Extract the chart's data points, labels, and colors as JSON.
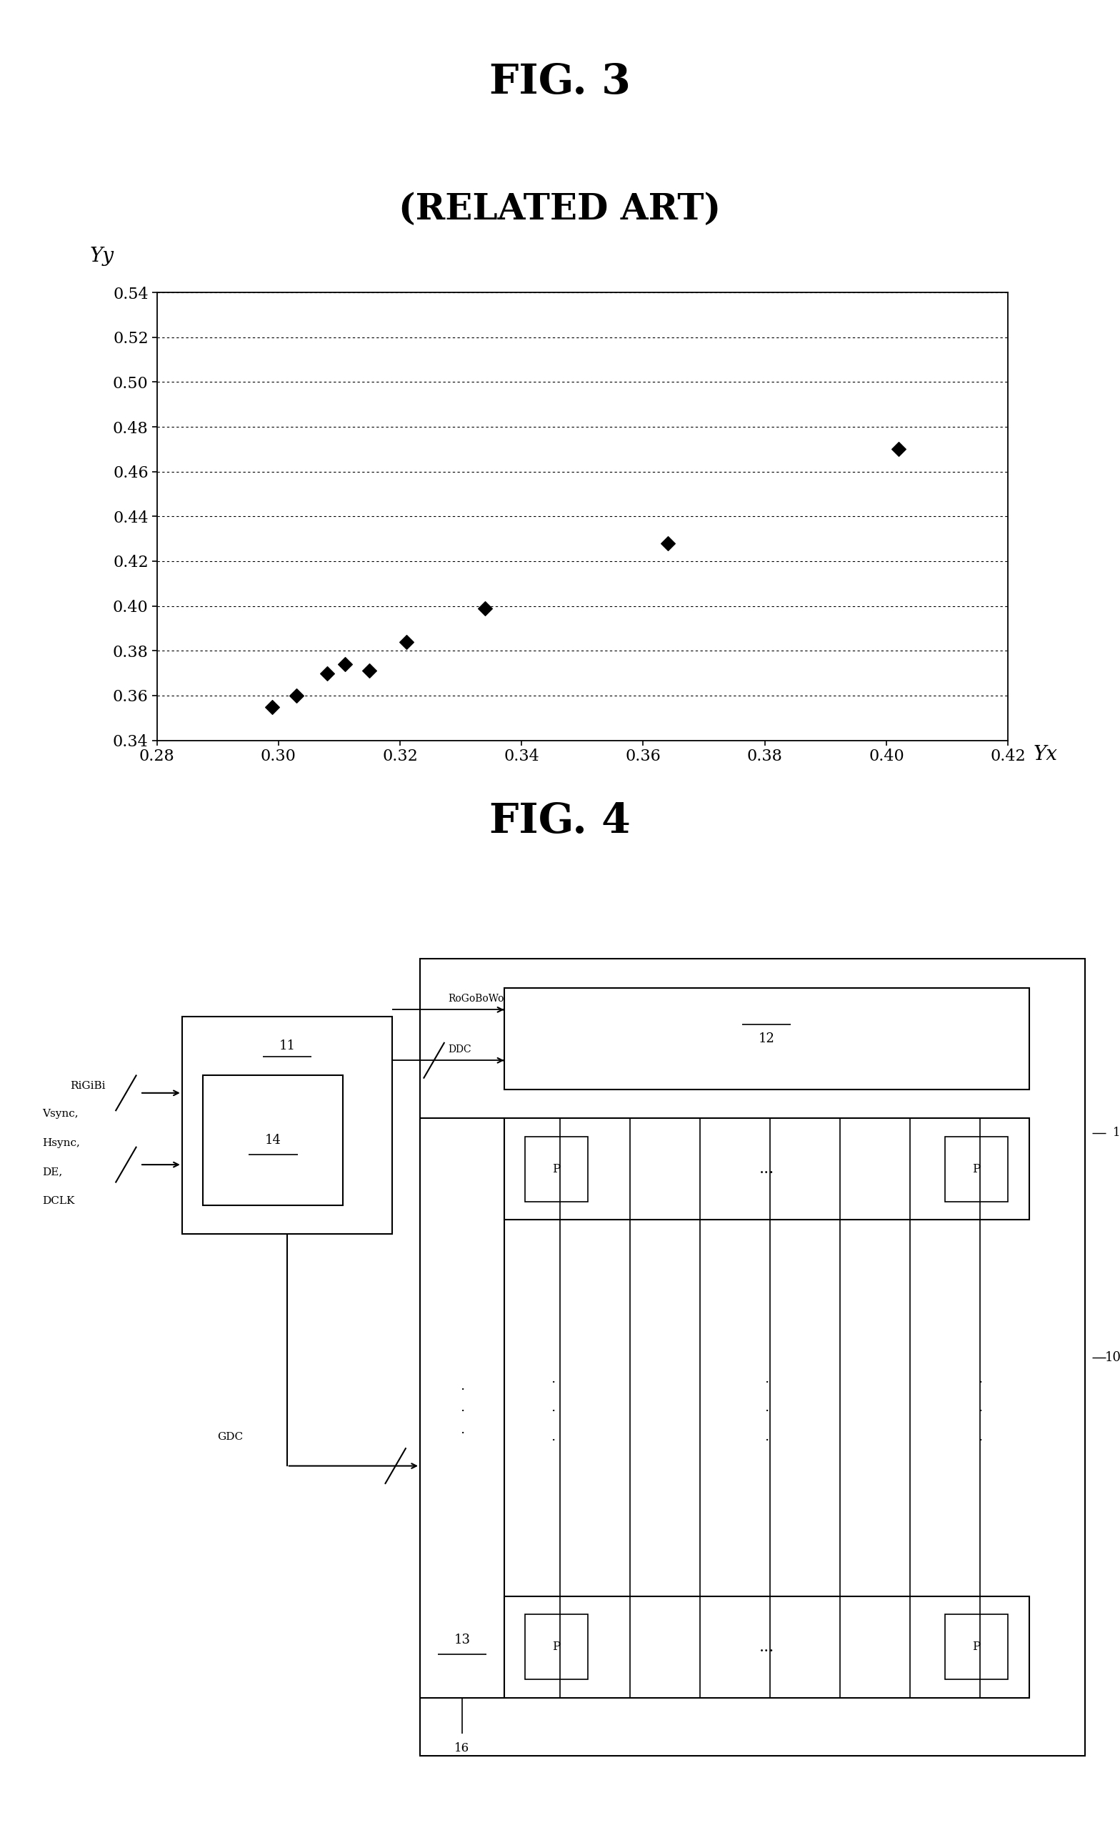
{
  "fig3_title": "FIG. 3",
  "fig3_subtitle": "(RELATED ART)",
  "scatter_x": [
    0.299,
    0.303,
    0.308,
    0.311,
    0.315,
    0.321,
    0.334,
    0.364,
    0.402
  ],
  "scatter_y": [
    0.355,
    0.36,
    0.37,
    0.374,
    0.371,
    0.384,
    0.399,
    0.428,
    0.47
  ],
  "xlabel": "Yx",
  "ylabel": "Yy",
  "xlim": [
    0.28,
    0.42
  ],
  "ylim": [
    0.34,
    0.54
  ],
  "xticks": [
    0.28,
    0.3,
    0.32,
    0.34,
    0.36,
    0.38,
    0.4,
    0.42
  ],
  "yticks": [
    0.34,
    0.36,
    0.38,
    0.4,
    0.42,
    0.44,
    0.46,
    0.48,
    0.5,
    0.52,
    0.54
  ],
  "xtick_labels": [
    "0.28",
    "0.30",
    "0.32",
    "0.34",
    "0.36",
    "0.38",
    "0.40",
    "0.42"
  ],
  "ytick_labels": [
    "0.34",
    "0.36",
    "0.38",
    "0.40",
    "0.42",
    "0.44",
    "0.46",
    "0.48",
    "0.50",
    "0.52",
    "0.54"
  ],
  "fig4_title": "FIG. 4",
  "bg_color": "#ffffff"
}
